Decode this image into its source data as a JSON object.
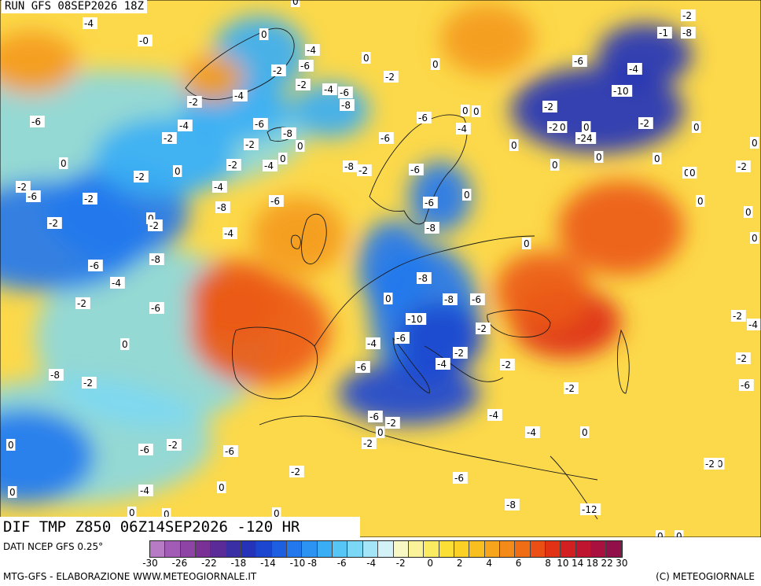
{
  "header": {
    "run": "RUN GFS 08SEP2026 18Z"
  },
  "title": "DIF TMP Z850 06Z14SEP2026 -120 HR",
  "footer": {
    "data_source": "DATI NCEP GFS 0.25°",
    "credit": "MTG-GFS - ELABORAZIONE WWW.METEOGIORNALE.IT",
    "copyright": "(C) METEOGIORNALE"
  },
  "legend": {
    "colors": [
      "#b77bc6",
      "#a35cb5",
      "#8e44a5",
      "#7a3196",
      "#5b2c97",
      "#3b2fa5",
      "#2433b8",
      "#1c46d0",
      "#1e5fe2",
      "#2378ee",
      "#2c93f2",
      "#3aaef4",
      "#55c6f5",
      "#7ad8f6",
      "#a4e6f7",
      "#d2f2f8",
      "#f8f8c4",
      "#fbf39a",
      "#fbeb60",
      "#fcdf35",
      "#fbd125",
      "#f9bf1e",
      "#f6a51c",
      "#f48a18",
      "#f06c15",
      "#ec4f14",
      "#e23216",
      "#d21f21",
      "#bf1531",
      "#a91040",
      "#92104a"
    ],
    "ticks": [
      {
        "label": "-30",
        "value": -30
      },
      {
        "label": "-26",
        "value": -26
      },
      {
        "label": "-22",
        "value": -22
      },
      {
        "label": "-18",
        "value": -18
      },
      {
        "label": "-14",
        "value": -14
      },
      {
        "label": "-10",
        "value": -10
      },
      {
        "label": "-8",
        "value": -8
      },
      {
        "label": "-6",
        "value": -6
      },
      {
        "label": "-4",
        "value": -4
      },
      {
        "label": "-2",
        "value": -2
      },
      {
        "label": "0",
        "value": 0
      },
      {
        "label": "2",
        "value": 2
      },
      {
        "label": "4",
        "value": 4
      },
      {
        "label": "6",
        "value": 6
      },
      {
        "label": "8",
        "value": 8
      },
      {
        "label": "10",
        "value": 10
      },
      {
        "label": "14",
        "value": 14
      },
      {
        "label": "18",
        "value": 18
      },
      {
        "label": "22",
        "value": 22
      },
      {
        "label": "30",
        "value": 30
      }
    ]
  },
  "map": {
    "anomalies": [
      {
        "name": "west-atlantic-cold",
        "type": "cold",
        "value": -8
      },
      {
        "name": "north-atlantic-cold",
        "type": "cold",
        "value": -6
      },
      {
        "name": "greenland-cold",
        "type": "cold",
        "value": -6
      },
      {
        "name": "iberia-warm",
        "type": "warm",
        "value": 10
      },
      {
        "name": "british-isles-warm",
        "type": "warm",
        "value": 6
      },
      {
        "name": "central-europe-cold",
        "type": "cold",
        "value": -8
      },
      {
        "name": "balkans-cold",
        "type": "cold",
        "value": -10
      },
      {
        "name": "turkey-warm",
        "type": "warm",
        "value": 14
      },
      {
        "name": "russia-warm",
        "type": "warm",
        "value": 10
      },
      {
        "name": "barents-cold",
        "type": "cold",
        "value": -12
      },
      {
        "name": "scandinavia-warm",
        "type": "warm",
        "value": 6
      },
      {
        "name": "canada-warm",
        "type": "warm",
        "value": 6
      }
    ],
    "labels": [
      "-2",
      "-4",
      "-0",
      "0",
      "0",
      "-4",
      "-2",
      "-6",
      "-2",
      "-4",
      "-6",
      "0",
      "-2",
      "-8",
      "0",
      "-2",
      "-4",
      "-6",
      "-8",
      "0",
      "0",
      "-2",
      "-8",
      "-6",
      "-4",
      "-2",
      "-2",
      "-4",
      "-2",
      "-6",
      "0",
      "-2",
      "0",
      "-2",
      "-6",
      "-4",
      "-2",
      "-8",
      "-6",
      "-6",
      "-6",
      "-4",
      "0",
      "-6",
      "-8",
      "-4",
      "-2",
      "0",
      "-2",
      "-8",
      "-6",
      "-4",
      "-2",
      "-6",
      "-8",
      "-8",
      "-6",
      "-10",
      "-6",
      "-2",
      "-4",
      "-2",
      "0",
      "-4",
      "-6",
      "-8",
      "-2",
      "0",
      "-2",
      "-4",
      "-6",
      "-2",
      "0",
      "-2",
      "-4",
      "-2",
      "-6",
      "-6",
      "0",
      "-2",
      "0",
      "-4",
      "0",
      "-6",
      "-8",
      "-12",
      "-1",
      "-8",
      "-6",
      "-4",
      "-10",
      "-2",
      "-2",
      "0",
      "0",
      "-24",
      "-2",
      "0",
      "0",
      "0",
      "0",
      "0",
      "0",
      "0",
      "0",
      "0",
      "0",
      "-2",
      "-2",
      "0",
      "0",
      "0",
      "0",
      "-2",
      "-4",
      "-2",
      "-6",
      "-2",
      "0",
      "0",
      "-2",
      "0",
      "0",
      "0",
      "0",
      "0",
      "-2",
      "0",
      "0",
      "-4",
      "-4",
      "-6",
      "-2",
      "-2"
    ]
  }
}
